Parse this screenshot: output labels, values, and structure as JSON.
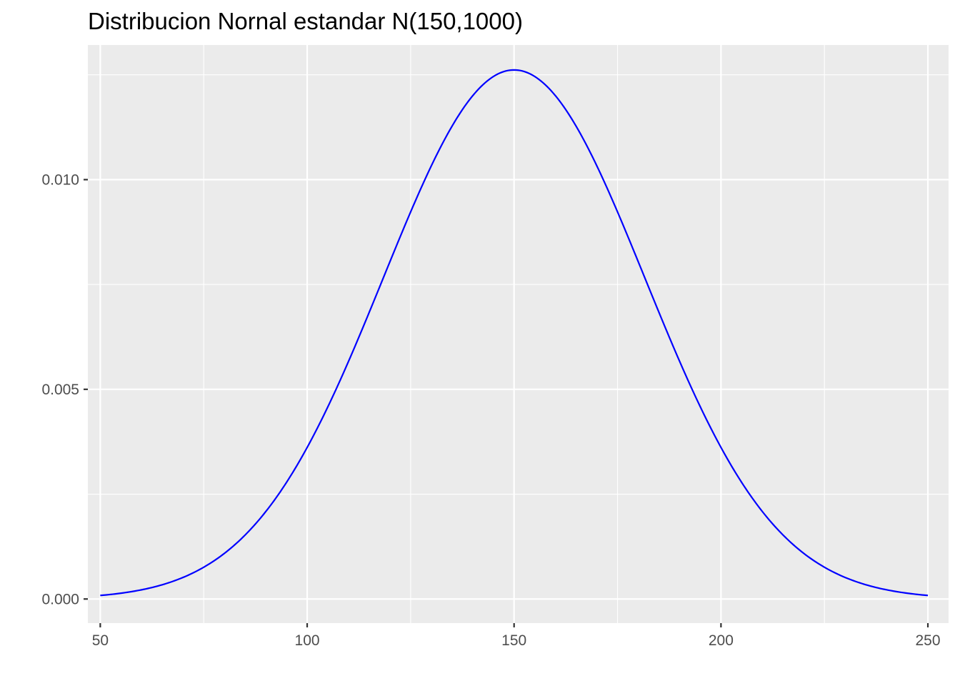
{
  "chart_data": {
    "type": "line",
    "title": "Distribucion Nornal estandar N(150,1000)",
    "xlabel": "",
    "ylabel": "",
    "xlim": [
      47,
      255
    ],
    "ylim": [
      -0.000575,
      0.01321
    ],
    "x_ticks": [
      50,
      100,
      150,
      200,
      250
    ],
    "x_tick_labels": [
      "50",
      "100",
      "150",
      "200",
      "250"
    ],
    "y_ticks": [
      0.0,
      0.005,
      0.01
    ],
    "y_tick_labels": [
      "0.000",
      "0.005",
      "0.010"
    ],
    "x_minor_grid": [
      75,
      125,
      175,
      225
    ],
    "y_minor_grid": [
      0.0025,
      0.0075,
      0.0125
    ],
    "grid": true,
    "legend": "none",
    "series": [
      {
        "distribution": "normal",
        "mean": 150,
        "variance": 1000,
        "x_range": [
          50,
          250
        ]
      }
    ],
    "colors": {
      "line": "#0000ff",
      "panel_background": "#ebebeb",
      "grid": "#ffffff",
      "axis_ticks": "#333333"
    }
  }
}
